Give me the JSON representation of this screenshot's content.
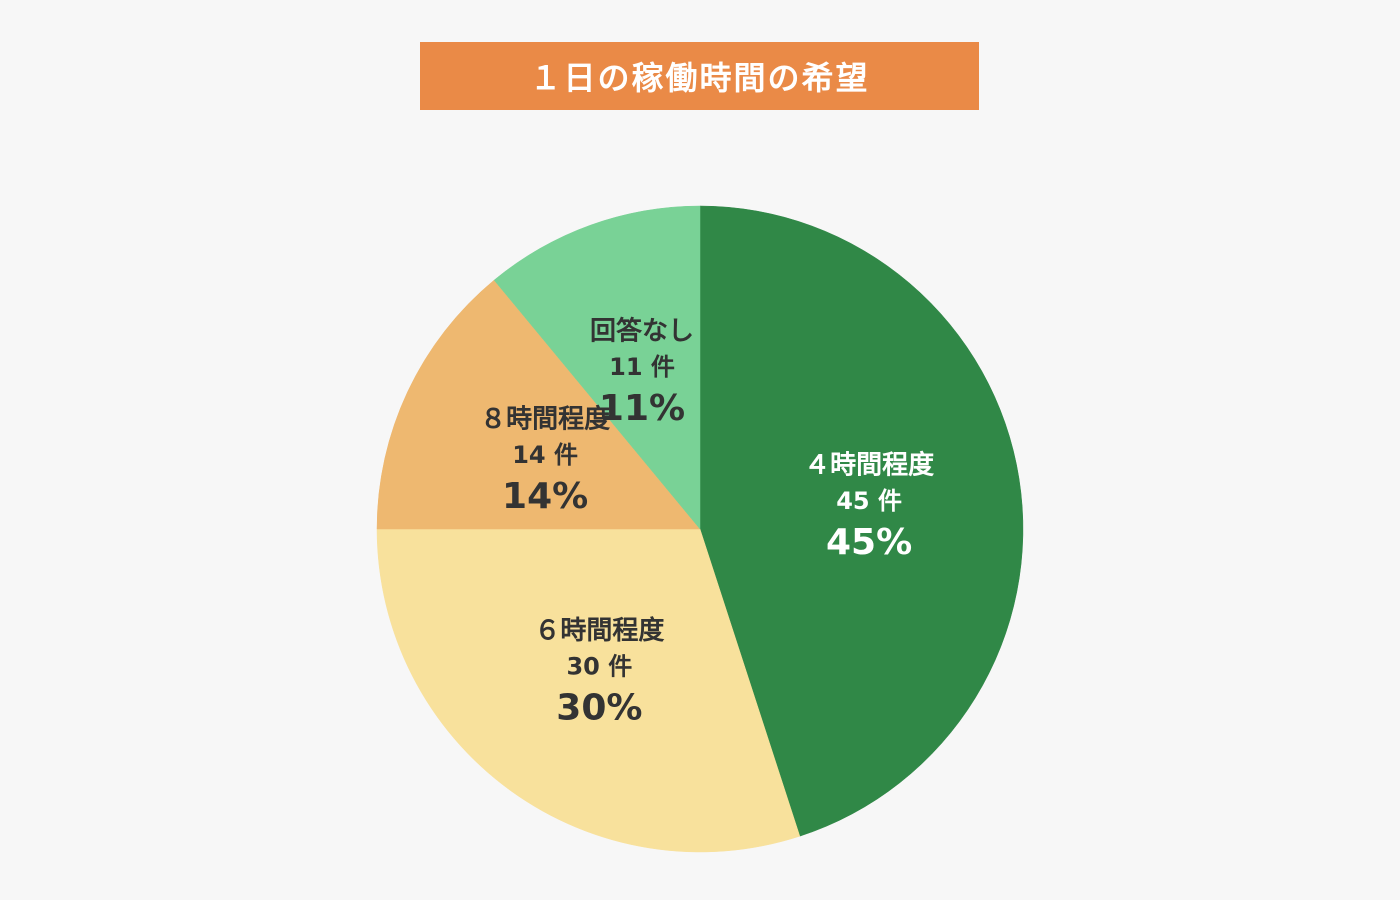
{
  "chart_data": {
    "type": "pie",
    "title": "１日の稼働時間の希望",
    "count_unit": "件",
    "start_angle_deg": 0,
    "direction": "clockwise",
    "slices": [
      {
        "label": "４時間程度",
        "count": 45,
        "percent": 45,
        "color": "#308847",
        "text_color": "#ffffff"
      },
      {
        "label": "６時間程度",
        "count": 30,
        "percent": 30,
        "color": "#f8e19c",
        "text_color": "#333333"
      },
      {
        "label": "８時間程度",
        "count": 14,
        "percent": 14,
        "color": "#eeb870",
        "text_color": "#333333"
      },
      {
        "label": "回答なし",
        "count": 11,
        "percent": 11,
        "color": "#79d296",
        "text_color": "#333333"
      }
    ]
  },
  "colors": {
    "background": "#f7f7f7",
    "title_banner": "#ea8a47",
    "title_text": "#ffffff"
  }
}
